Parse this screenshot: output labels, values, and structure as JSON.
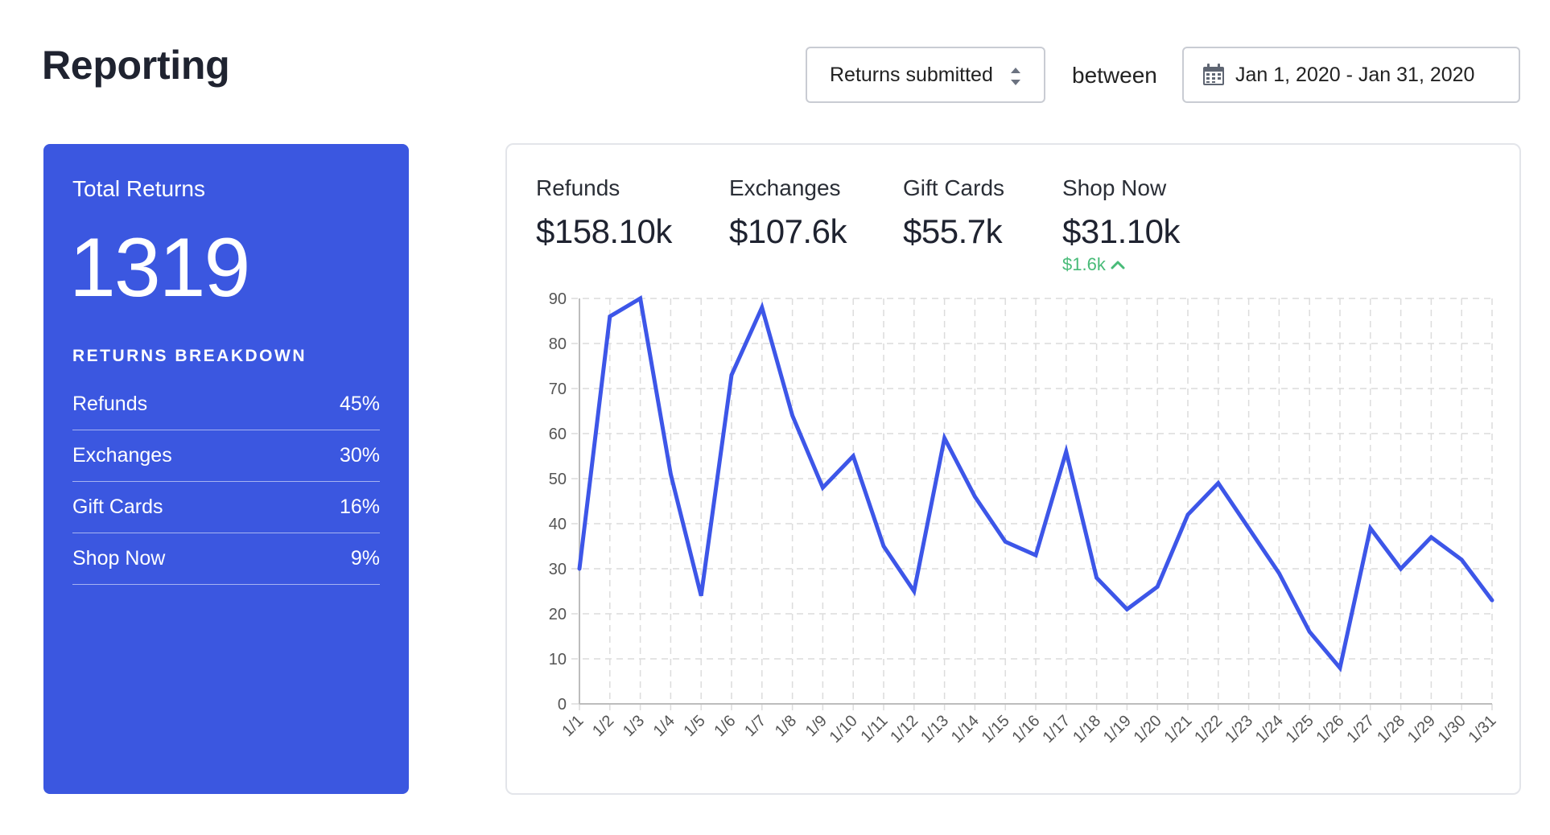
{
  "header": {
    "title": "Reporting",
    "metric_select": {
      "value": "Returns submitted",
      "icon": "up-down-arrows-icon"
    },
    "between_label": "between",
    "date_range": {
      "value": "Jan 1, 2020 - Jan 31, 2020",
      "icon": "calendar-icon"
    }
  },
  "summary_card": {
    "label": "Total Returns",
    "total": "1319",
    "breakdown_title": "RETURNS BREAKDOWN",
    "breakdown": [
      {
        "label": "Refunds",
        "percent": "45%"
      },
      {
        "label": "Exchanges",
        "percent": "30%"
      },
      {
        "label": "Gift Cards",
        "percent": "16%"
      },
      {
        "label": "Shop Now",
        "percent": "9%"
      }
    ]
  },
  "stats": [
    {
      "label": "Refunds",
      "value": "$158.10k"
    },
    {
      "label": "Exchanges",
      "value": "$107.6k"
    },
    {
      "label": "Gift Cards",
      "value": "$55.7k"
    },
    {
      "label": "Shop Now",
      "value": "$31.10k",
      "change": "$1.6k",
      "change_direction": "up"
    }
  ],
  "colors": {
    "accent": "#3b57e0",
    "line": "#3d56e8",
    "positive": "#48bb78",
    "grid": "#dcdcdc"
  },
  "chart_data": {
    "type": "line",
    "categories": [
      "1/1",
      "1/2",
      "1/3",
      "1/4",
      "1/5",
      "1/6",
      "1/7",
      "1/8",
      "1/9",
      "1/10",
      "1/11",
      "1/12",
      "1/13",
      "1/14",
      "1/15",
      "1/16",
      "1/17",
      "1/18",
      "1/19",
      "1/20",
      "1/21",
      "1/22",
      "1/23",
      "1/24",
      "1/25",
      "1/26",
      "1/27",
      "1/28",
      "1/29",
      "1/30",
      "1/31"
    ],
    "series": [
      {
        "values": [
          30,
          86,
          90,
          51,
          24,
          73,
          88,
          64,
          48,
          55,
          35,
          25,
          59,
          46,
          36,
          33,
          56,
          28,
          21,
          26,
          42,
          49,
          39,
          29,
          16,
          8,
          39,
          30,
          37,
          32,
          23
        ]
      }
    ],
    "ylim": [
      0,
      90
    ],
    "yticks": [
      0,
      10,
      20,
      30,
      40,
      50,
      60,
      70,
      80,
      90
    ],
    "grid": true,
    "xlabel": "",
    "ylabel": ""
  }
}
